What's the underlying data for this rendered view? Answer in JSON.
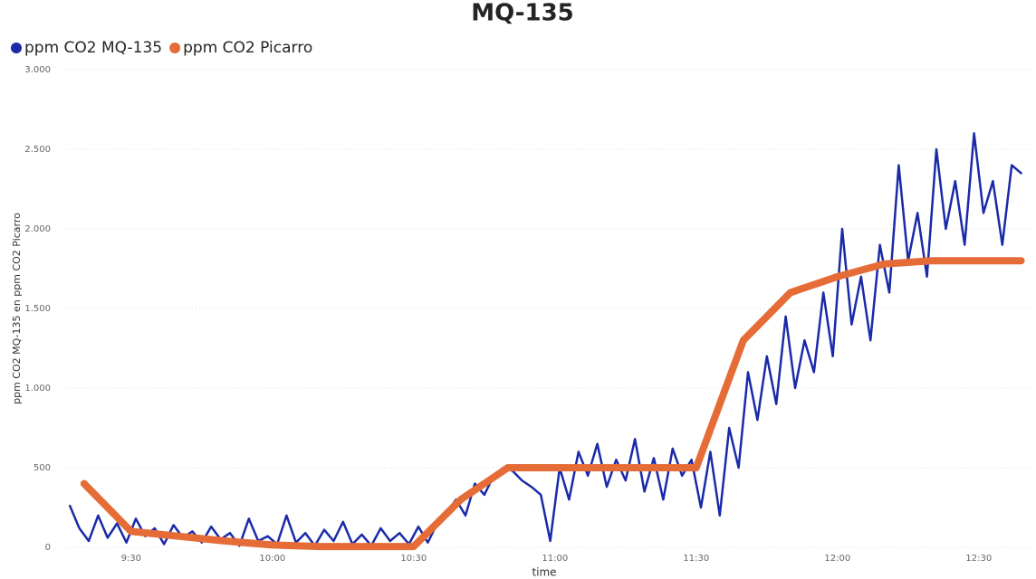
{
  "chart_data": {
    "type": "line",
    "title": "MQ-135",
    "x_label": "time",
    "y_label": "ppm CO2 MQ-135 en ppm CO2 Picarro",
    "xlim": [
      556,
      761
    ],
    "ylim": [
      0,
      3000
    ],
    "xticks": [
      {
        "value": 570,
        "label": "9:30"
      },
      {
        "value": 600,
        "label": "10:00"
      },
      {
        "value": 630,
        "label": "10:30"
      },
      {
        "value": 660,
        "label": "11:00"
      },
      {
        "value": 690,
        "label": "11:30"
      },
      {
        "value": 720,
        "label": "12:00"
      },
      {
        "value": 750,
        "label": "12:30"
      }
    ],
    "yticks": [
      0,
      500,
      {
        "value": 1000,
        "label": "1.000"
      },
      {
        "value": 1500,
        "label": "1.500"
      },
      {
        "value": 2000,
        "label": "2.000"
      },
      {
        "value": 2500,
        "label": "2.500"
      },
      {
        "value": 3000,
        "label": "3.000"
      }
    ],
    "grid": true,
    "legend": "top-left",
    "series": [
      {
        "name": "ppm CO2 MQ-135",
        "color": "#1a2aa8",
        "width": 2.5,
        "x": [
          557,
          559,
          561,
          563,
          565,
          567,
          569,
          571,
          573,
          575,
          577,
          579,
          581,
          583,
          585,
          587,
          589,
          591,
          593,
          595,
          597,
          599,
          601,
          603,
          605,
          607,
          609,
          611,
          613,
          615,
          617,
          619,
          621,
          623,
          625,
          627,
          629,
          631,
          633,
          635,
          637,
          639,
          641,
          643,
          645,
          647,
          649,
          651,
          653,
          655,
          657,
          659,
          661,
          663,
          665,
          667,
          669,
          671,
          673,
          675,
          677,
          679,
          681,
          683,
          685,
          687,
          689,
          691,
          693,
          695,
          697,
          699,
          701,
          703,
          705,
          707,
          709,
          711,
          713,
          715,
          717,
          719,
          721,
          723,
          725,
          727,
          729,
          731,
          733,
          735,
          737,
          739,
          741,
          743,
          745,
          747,
          749,
          751,
          753,
          755,
          757,
          759
        ],
        "values": [
          260,
          120,
          40,
          200,
          60,
          150,
          30,
          180,
          70,
          120,
          20,
          140,
          60,
          100,
          30,
          130,
          50,
          90,
          10,
          180,
          40,
          70,
          20,
          200,
          30,
          90,
          10,
          110,
          40,
          160,
          20,
          80,
          10,
          120,
          40,
          90,
          20,
          130,
          30,
          150,
          220,
          300,
          200,
          400,
          330,
          450,
          500,
          480,
          420,
          380,
          330,
          40,
          500,
          300,
          600,
          450,
          650,
          380,
          550,
          420,
          680,
          350,
          560,
          300,
          620,
          450,
          550,
          250,
          600,
          200,
          750,
          500,
          1100,
          800,
          1200,
          900,
          1450,
          1000,
          1300,
          1100,
          1600,
          1200,
          2000,
          1400,
          1700,
          1300,
          1900,
          1600,
          2400,
          1800,
          2100,
          1700,
          2500,
          2000,
          2300,
          1900,
          2600,
          2100,
          2300,
          1900,
          2400,
          2350
        ]
      },
      {
        "name": "ppm CO2 Picarro",
        "color": "#e66c37",
        "width": 8,
        "x": [
          560,
          570,
          580,
          590,
          600,
          610,
          620,
          630,
          640,
          650,
          660,
          670,
          680,
          690,
          700,
          710,
          720,
          730,
          740,
          750,
          759
        ],
        "values": [
          400,
          100,
          70,
          40,
          15,
          5,
          5,
          5,
          300,
          500,
          500,
          500,
          500,
          500,
          1300,
          1600,
          1700,
          1780,
          1800,
          1800,
          1800
        ]
      }
    ]
  }
}
